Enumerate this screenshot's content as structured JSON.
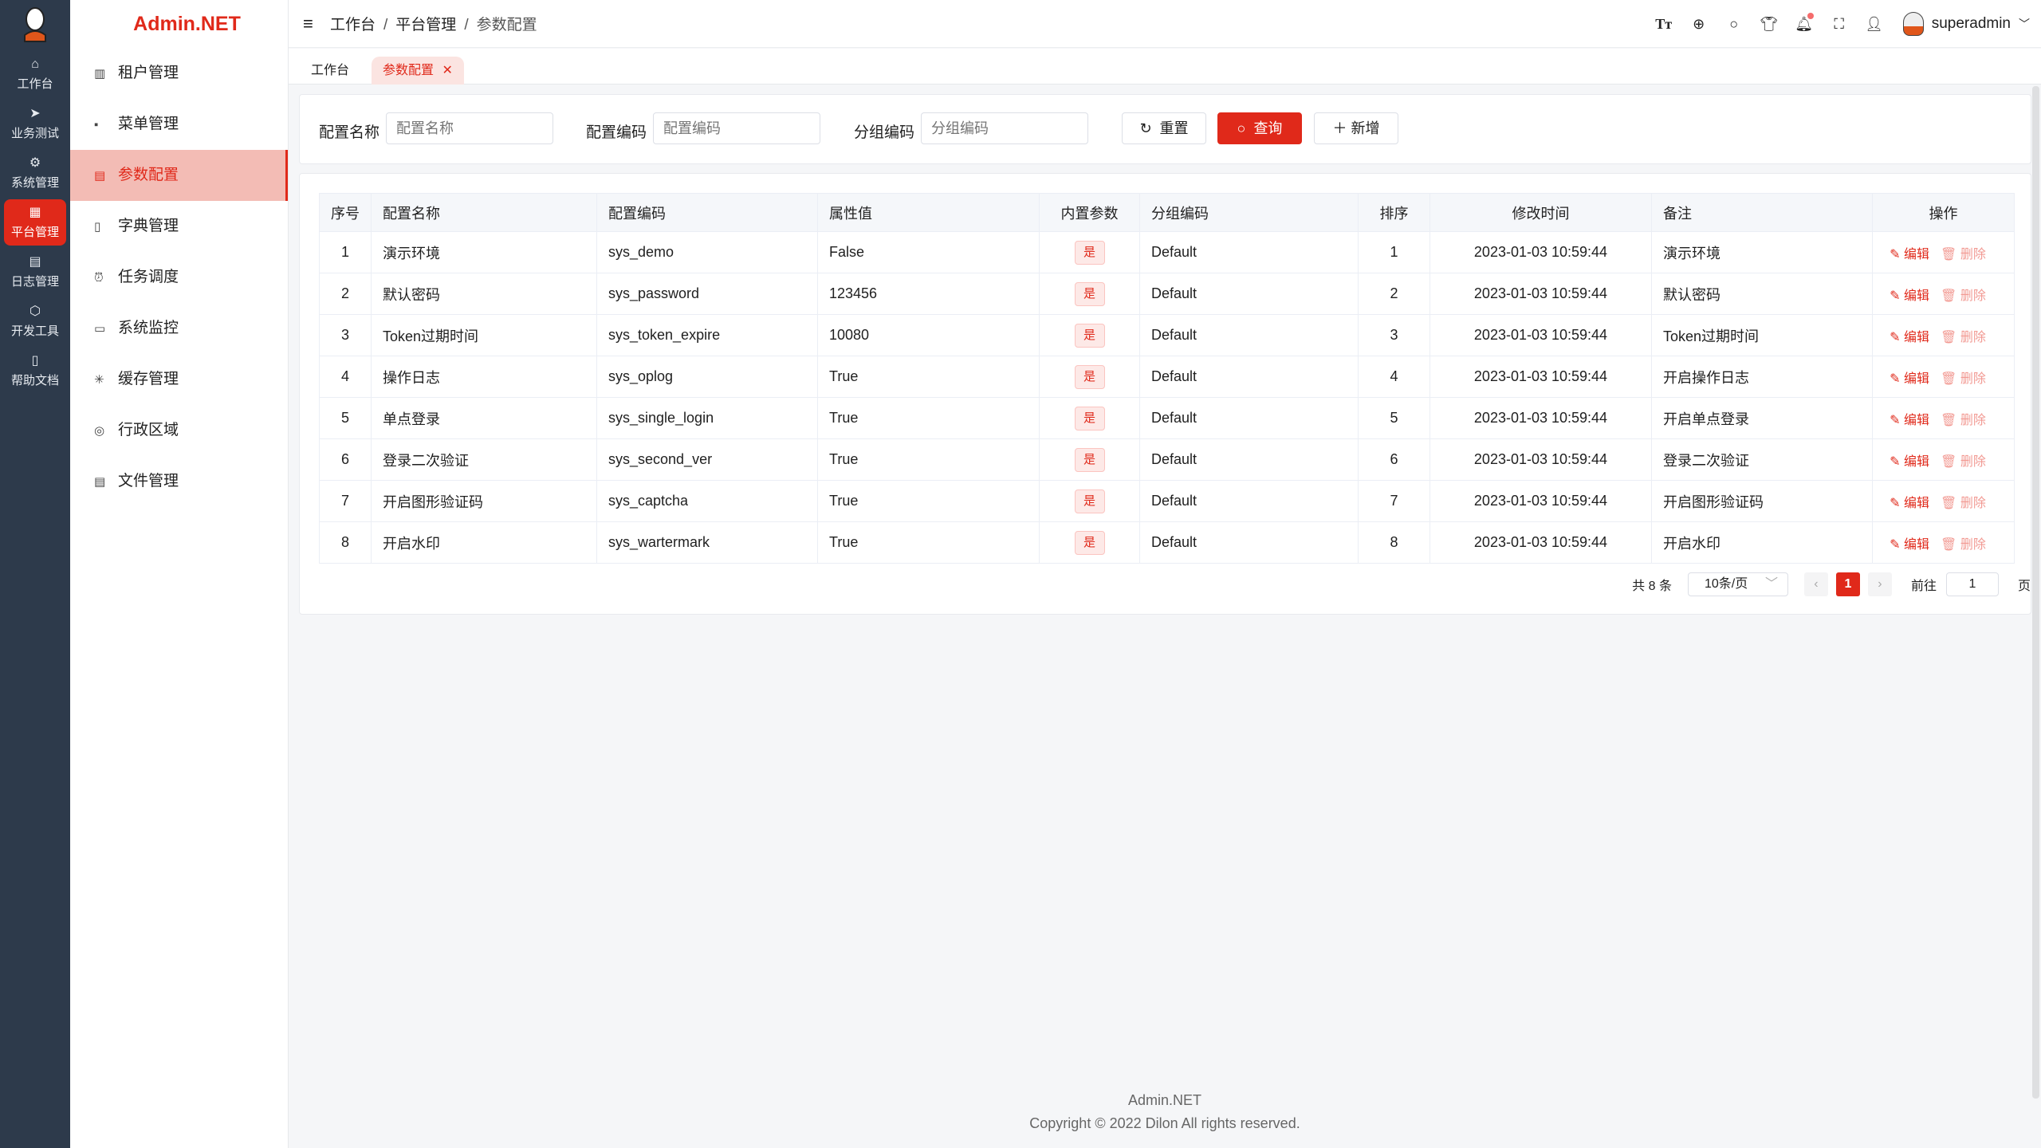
{
  "brand": "Admin.NET",
  "rail": [
    {
      "label": "工作台",
      "icon": "home-icon"
    },
    {
      "label": "业务测试",
      "icon": "send-icon"
    },
    {
      "label": "系统管理",
      "icon": "gear-icon"
    },
    {
      "label": "平台管理",
      "icon": "grid-icon",
      "active": true
    },
    {
      "label": "日志管理",
      "icon": "doc-icon"
    },
    {
      "label": "开发工具",
      "icon": "chip-icon"
    },
    {
      "label": "帮助文档",
      "icon": "book-icon"
    }
  ],
  "menu": [
    {
      "label": "租户管理"
    },
    {
      "label": "菜单管理"
    },
    {
      "label": "参数配置",
      "active": true
    },
    {
      "label": "字典管理"
    },
    {
      "label": "任务调度"
    },
    {
      "label": "系统监控"
    },
    {
      "label": "缓存管理"
    },
    {
      "label": "行政区域"
    },
    {
      "label": "文件管理"
    }
  ],
  "breadcrumb": [
    "工作台",
    "平台管理",
    "参数配置"
  ],
  "user": "superadmin",
  "tabs": [
    {
      "label": "工作台"
    },
    {
      "label": "参数配置",
      "active": true
    }
  ],
  "filter": {
    "name_label": "配置名称",
    "name_placeholder": "配置名称",
    "code_label": "配置编码",
    "code_placeholder": "配置编码",
    "group_label": "分组编码",
    "group_placeholder": "分组编码",
    "reset": "重置",
    "query": "查询",
    "add": "新增"
  },
  "table": {
    "columns": [
      "序号",
      "配置名称",
      "配置编码",
      "属性值",
      "内置参数",
      "分组编码",
      "排序",
      "修改时间",
      "备注",
      "操作"
    ],
    "rows": [
      [
        "1",
        "演示环境",
        "sys_demo",
        "False",
        "是",
        "Default",
        "1",
        "2023-01-03 10:59:44",
        "演示环境"
      ],
      [
        "2",
        "默认密码",
        "sys_password",
        "123456",
        "是",
        "Default",
        "2",
        "2023-01-03 10:59:44",
        "默认密码"
      ],
      [
        "3",
        "Token过期时间",
        "sys_token_expire",
        "10080",
        "是",
        "Default",
        "3",
        "2023-01-03 10:59:44",
        "Token过期时间"
      ],
      [
        "4",
        "操作日志",
        "sys_oplog",
        "True",
        "是",
        "Default",
        "4",
        "2023-01-03 10:59:44",
        "开启操作日志"
      ],
      [
        "5",
        "单点登录",
        "sys_single_login",
        "True",
        "是",
        "Default",
        "5",
        "2023-01-03 10:59:44",
        "开启单点登录"
      ],
      [
        "6",
        "登录二次验证",
        "sys_second_ver",
        "True",
        "是",
        "Default",
        "6",
        "2023-01-03 10:59:44",
        "登录二次验证"
      ],
      [
        "7",
        "开启图形验证码",
        "sys_captcha",
        "True",
        "是",
        "Default",
        "7",
        "2023-01-03 10:59:44",
        "开启图形验证码"
      ],
      [
        "8",
        "开启水印",
        "sys_wartermark",
        "True",
        "是",
        "Default",
        "8",
        "2023-01-03 10:59:44",
        "开启水印"
      ]
    ],
    "edit": "编辑",
    "delete": "删除"
  },
  "pagination": {
    "total": "共 8 条",
    "page_size": "10条/页",
    "current": "1",
    "goto_label": "前往",
    "goto_value": "1",
    "page_suffix": "页"
  },
  "footer": {
    "name": "Admin.NET",
    "copyright": "Copyright © 2022 Dilon All rights reserved."
  },
  "colors": {
    "accent": "#e0291a",
    "rail": "#2d3a4b"
  }
}
